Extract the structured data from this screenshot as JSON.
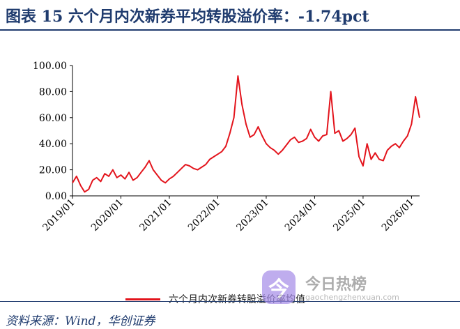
{
  "title": "图表 15   六个月内次新券平均转股溢价率：-1.74pct",
  "source": "资料来源：Wind，华创证券",
  "watermark": {
    "glyph": "今",
    "name": "今日热榜",
    "url": "gaochengzhenxuan.com"
  },
  "colors": {
    "line": "#e3141c",
    "title": "#1f3b6e"
  },
  "chart_data": {
    "type": "line",
    "title": "",
    "xlabel": "",
    "ylabel": "",
    "ylim": [
      0,
      100
    ],
    "yticks": [
      "0.00",
      "20.00",
      "40.00",
      "60.00",
      "80.00",
      "100.00"
    ],
    "xticks": [
      "2019/01",
      "2020/01",
      "2021/01",
      "2022/01",
      "2023/01",
      "2024/01",
      "2025/01",
      "2026/01"
    ],
    "xlim": [
      "2019-01",
      "2026-03"
    ],
    "legend_position": "bottom",
    "grid": false,
    "series": [
      {
        "name": "六个月内次新券转股溢价率均值",
        "x": [
          "2019-01",
          "2019-02",
          "2019-03",
          "2019-04",
          "2019-05",
          "2019-06",
          "2019-07",
          "2019-08",
          "2019-09",
          "2019-10",
          "2019-11",
          "2019-12",
          "2020-01",
          "2020-02",
          "2020-03",
          "2020-04",
          "2020-05",
          "2020-06",
          "2020-07",
          "2020-08",
          "2020-09",
          "2020-10",
          "2020-11",
          "2020-12",
          "2021-01",
          "2021-02",
          "2021-03",
          "2021-04",
          "2021-05",
          "2021-06",
          "2021-07",
          "2021-08",
          "2021-09",
          "2021-10",
          "2021-11",
          "2021-12",
          "2022-01",
          "2022-02",
          "2022-03",
          "2022-04",
          "2022-05",
          "2022-06",
          "2022-07",
          "2022-08",
          "2022-09",
          "2022-10",
          "2022-11",
          "2022-12",
          "2023-01",
          "2023-02",
          "2023-03",
          "2023-04",
          "2023-05",
          "2023-06",
          "2023-07",
          "2023-08",
          "2023-09",
          "2023-10",
          "2023-11",
          "2023-12",
          "2024-01",
          "2024-02",
          "2024-03",
          "2024-04",
          "2024-05",
          "2024-06",
          "2024-07",
          "2024-08",
          "2024-09",
          "2024-10",
          "2024-11",
          "2024-12",
          "2025-01",
          "2025-02",
          "2025-03",
          "2025-04",
          "2025-05",
          "2025-06",
          "2025-07",
          "2025-08",
          "2025-09",
          "2025-10",
          "2025-11",
          "2025-12",
          "2026-01",
          "2026-02",
          "2026-03"
        ],
        "values": [
          10,
          15,
          8,
          3,
          5,
          12,
          14,
          11,
          17,
          15,
          20,
          14,
          16,
          13,
          18,
          12,
          14,
          18,
          22,
          27,
          20,
          16,
          12,
          10,
          13,
          15,
          18,
          21,
          24,
          23,
          21,
          20,
          22,
          24,
          28,
          30,
          32,
          34,
          38,
          48,
          60,
          92,
          70,
          55,
          45,
          47,
          53,
          46,
          40,
          37,
          35,
          32,
          35,
          39,
          43,
          45,
          41,
          42,
          44,
          51,
          45,
          42,
          46,
          47,
          80,
          48,
          50,
          42,
          44,
          47,
          52,
          30,
          23,
          40,
          28,
          33,
          28,
          27,
          35,
          38,
          40,
          37,
          42,
          46,
          55,
          76,
          60
        ]
      }
    ]
  }
}
